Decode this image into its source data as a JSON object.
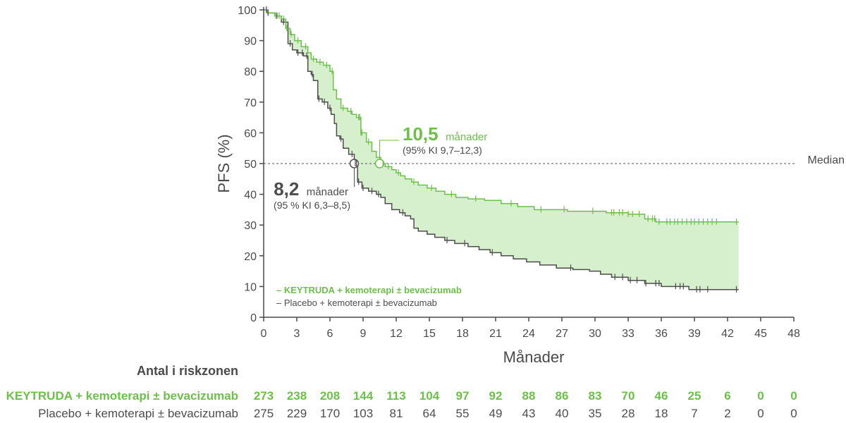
{
  "colors": {
    "treatment": "#6cc04a",
    "treatment_fill": "#d6efcc",
    "control": "#4d4d4d",
    "axis": "#4a4a4a"
  },
  "chart_data": {
    "type": "line",
    "ylabel": "PFS (%)",
    "xlabel": "Månader",
    "xlim": [
      0,
      48
    ],
    "ylim": [
      0,
      100
    ],
    "x_ticks": [
      0,
      3,
      6,
      9,
      12,
      15,
      18,
      21,
      24,
      27,
      30,
      33,
      36,
      39,
      42,
      45,
      48
    ],
    "y_ticks": [
      0,
      10,
      20,
      30,
      40,
      50,
      60,
      70,
      80,
      90,
      100
    ],
    "median_line": {
      "y": 50,
      "label": "Median"
    },
    "series": [
      {
        "name": "KEYTRUDA + kemoterapi ± bevacizumab",
        "color": "#6cc04a",
        "points": [
          [
            0,
            100
          ],
          [
            0.3,
            99
          ],
          [
            1,
            98
          ],
          [
            1.6,
            97
          ],
          [
            2,
            94
          ],
          [
            2.4,
            92
          ],
          [
            2.8,
            90
          ],
          [
            3.4,
            88
          ],
          [
            4,
            86
          ],
          [
            4.3,
            84
          ],
          [
            4.8,
            83
          ],
          [
            5.4,
            82
          ],
          [
            6,
            80
          ],
          [
            6.3,
            74
          ],
          [
            6.6,
            71
          ],
          [
            7,
            68
          ],
          [
            7.6,
            67
          ],
          [
            8,
            66
          ],
          [
            8.4,
            65
          ],
          [
            8.8,
            60
          ],
          [
            9.3,
            57
          ],
          [
            9.8,
            54
          ],
          [
            10.2,
            52
          ],
          [
            10.6,
            50
          ],
          [
            11,
            49
          ],
          [
            11.6,
            48
          ],
          [
            12,
            47
          ],
          [
            12.4,
            46
          ],
          [
            12.8,
            45
          ],
          [
            13.4,
            44
          ],
          [
            14,
            43
          ],
          [
            14.8,
            42
          ],
          [
            15.6,
            41
          ],
          [
            16.4,
            40
          ],
          [
            17.4,
            39
          ],
          [
            18.5,
            38.5
          ],
          [
            20,
            38
          ],
          [
            21.5,
            37
          ],
          [
            23,
            36
          ],
          [
            24.5,
            35
          ],
          [
            26,
            35
          ],
          [
            27.5,
            34.5
          ],
          [
            29.5,
            34.5
          ],
          [
            31,
            34
          ],
          [
            33,
            33.5
          ],
          [
            34.5,
            32
          ],
          [
            35.5,
            31
          ],
          [
            37,
            31
          ],
          [
            39,
            31
          ],
          [
            41,
            31
          ],
          [
            43,
            31
          ]
        ],
        "median": {
          "x": 10.5,
          "value_label": "10,5",
          "unit_label": "månader",
          "ci_label": "(95% KI 9,7–12,3)"
        }
      },
      {
        "name": "Placebo + kemoterapi ± bevacizumab",
        "color": "#4d4d4d",
        "points": [
          [
            0,
            100
          ],
          [
            0.3,
            99
          ],
          [
            1,
            98
          ],
          [
            1.6,
            96
          ],
          [
            2.2,
            89
          ],
          [
            2.6,
            87
          ],
          [
            3,
            86
          ],
          [
            3.6,
            85
          ],
          [
            4,
            80
          ],
          [
            4.3,
            79
          ],
          [
            4.5,
            77
          ],
          [
            4.9,
            71
          ],
          [
            5.3,
            70
          ],
          [
            5.8,
            68
          ],
          [
            6.1,
            66
          ],
          [
            6.4,
            63
          ],
          [
            6.6,
            59
          ],
          [
            6.9,
            58
          ],
          [
            7.2,
            55
          ],
          [
            7.7,
            53
          ],
          [
            8.2,
            50
          ],
          [
            8.5,
            44
          ],
          [
            8.9,
            42
          ],
          [
            9.5,
            41
          ],
          [
            10.2,
            40
          ],
          [
            10.6,
            39
          ],
          [
            11,
            37
          ],
          [
            11.6,
            35
          ],
          [
            12.3,
            34
          ],
          [
            12.8,
            33
          ],
          [
            13.3,
            32
          ],
          [
            13.6,
            29
          ],
          [
            14,
            28
          ],
          [
            14.8,
            27
          ],
          [
            15.5,
            26
          ],
          [
            16.4,
            25
          ],
          [
            17.3,
            24
          ],
          [
            18.5,
            23
          ],
          [
            19.5,
            22
          ],
          [
            20.5,
            21
          ],
          [
            21.5,
            20
          ],
          [
            22.6,
            19
          ],
          [
            23.8,
            18
          ],
          [
            25,
            17
          ],
          [
            26.5,
            16
          ],
          [
            28,
            15.5
          ],
          [
            29.5,
            15
          ],
          [
            30.5,
            14
          ],
          [
            31.5,
            13
          ],
          [
            33,
            12
          ],
          [
            34.5,
            11
          ],
          [
            36,
            10
          ],
          [
            38.5,
            9
          ],
          [
            41,
            9
          ],
          [
            43,
            9
          ]
        ],
        "median": {
          "x": 8.2,
          "value_label": "8,2",
          "unit_label": "månader",
          "ci_label": "(95 % KI 6,3–8,5)"
        }
      }
    ],
    "censor_ticks": {
      "treatment": [
        0.25,
        0.4,
        1.1,
        1.4,
        1.8,
        2.1,
        2.5,
        3.1,
        3.8,
        4.5,
        5.1,
        5.7,
        6.2,
        7.2,
        7.9,
        8.6,
        8.7,
        8.8,
        8.9,
        9.5,
        10.8,
        11.3,
        12.2,
        13.6,
        15.2,
        17.0,
        19.2,
        22.4,
        25.1,
        27.2,
        29.8,
        31.5,
        31.7,
        32.2,
        32.5,
        33.0,
        33.4,
        34.0,
        34.8,
        35.2,
        35.4,
        35.8,
        36.5,
        36.8,
        37.2,
        37.5,
        37.9,
        38.3,
        38.7,
        39.0,
        39.4,
        39.8,
        40.2,
        40.6,
        41.0,
        42.8
      ],
      "control": [
        0.25,
        0.4,
        1.2,
        1.8,
        2.4,
        3.1,
        3.5,
        3.9,
        4.4,
        5.0,
        5.5,
        6.0,
        7.0,
        8.0,
        8.3,
        8.4,
        8.6,
        9.0,
        9.8,
        10.4,
        12.6,
        16.6,
        18.2,
        20.7,
        27.8,
        31.8,
        32.5,
        33.2,
        33.8,
        34.6,
        35.5,
        35.8,
        37.3,
        37.7,
        38.0,
        39.2,
        39.5,
        40.2,
        42.8
      ]
    },
    "legend": {
      "placement": "bottom-left",
      "entries": [
        {
          "text": "– KEYTRUDA + kemoterapi ± bevacizumab",
          "color": "#6cc04a",
          "bold": true
        },
        {
          "text": "– Placebo + kemoterapi ± bevacizumab",
          "color": "#4d4d4d",
          "bold": false
        }
      ]
    }
  },
  "risk_table": {
    "title": "Antal i riskzonen",
    "rows": [
      {
        "label": "KEYTRUDA + kemoterapi ± bevacizumab",
        "color": "#6cc04a",
        "bold": true,
        "values": [
          "273",
          "238",
          "208",
          "144",
          "113",
          "104",
          "97",
          "92",
          "88",
          "86",
          "83",
          "70",
          "46",
          "25",
          "6",
          "0",
          "0"
        ]
      },
      {
        "label": "Placebo + kemoterapi ± bevacizumab",
        "color": "#4d4d4d",
        "bold": false,
        "values": [
          "275",
          "229",
          "170",
          "103",
          "81",
          "64",
          "55",
          "49",
          "43",
          "40",
          "35",
          "28",
          "18",
          "7",
          "2",
          "0",
          "0"
        ]
      }
    ]
  }
}
